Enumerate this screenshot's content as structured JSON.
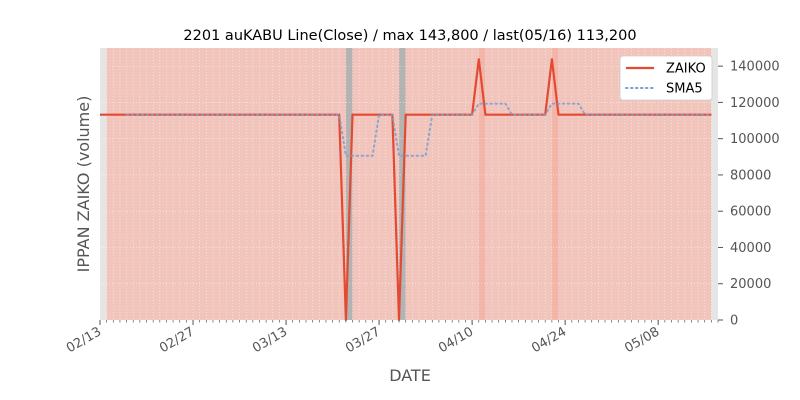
{
  "chart_data": {
    "type": "line",
    "title": "2201 auKABU Line(Close) / max 143,800 / last(05/16) 113,200",
    "xlabel": "DATE",
    "ylabel": "IPPAN ZAIKO (volume)",
    "ylim": [
      0,
      150000
    ],
    "yticks": [
      0,
      20000,
      40000,
      60000,
      80000,
      100000,
      120000,
      140000
    ],
    "ytick_labels": [
      "0",
      "20000",
      "40000",
      "60000",
      "80000",
      "100000",
      "120000",
      "140000"
    ],
    "xlim": [
      "2025-02-13",
      "2025-05-17"
    ],
    "xticks": [
      "2025-02-13",
      "2025-02-27",
      "2025-03-13",
      "2025-03-27",
      "2025-04-10",
      "2025-04-24",
      "2025-05-08"
    ],
    "xtick_labels": [
      "02/13",
      "02/27",
      "03/13",
      "03/27",
      "04/10",
      "04/24",
      "05/08"
    ],
    "grid": true,
    "legend_position": "top-right",
    "y_axis_side": "right",
    "background": "#e5e5e5",
    "series": [
      {
        "name": "ZAIKO",
        "color": "#e24a33",
        "style": "solid",
        "points": [
          [
            "2025-02-13",
            113200
          ],
          [
            "2025-03-21",
            113200
          ],
          [
            "2025-03-22",
            0
          ],
          [
            "2025-03-23",
            113200
          ],
          [
            "2025-03-29",
            113200
          ],
          [
            "2025-03-30",
            0
          ],
          [
            "2025-03-31",
            113200
          ],
          [
            "2025-04-10",
            113200
          ],
          [
            "2025-04-11",
            143800
          ],
          [
            "2025-04-12",
            113200
          ],
          [
            "2025-04-21",
            113200
          ],
          [
            "2025-04-22",
            143800
          ],
          [
            "2025-04-23",
            113200
          ],
          [
            "2025-05-16",
            113200
          ]
        ]
      },
      {
        "name": "SMA5",
        "color": "#7a9fcf",
        "style": "dotted",
        "points": [
          [
            "2025-02-17",
            113200
          ],
          [
            "2025-03-21",
            113200
          ],
          [
            "2025-03-22",
            90560
          ],
          [
            "2025-03-26",
            90560
          ],
          [
            "2025-03-27",
            113200
          ],
          [
            "2025-03-29",
            113200
          ],
          [
            "2025-03-30",
            90560
          ],
          [
            "2025-04-03",
            90560
          ],
          [
            "2025-04-04",
            113200
          ],
          [
            "2025-04-10",
            113200
          ],
          [
            "2025-04-11",
            119320
          ],
          [
            "2025-04-15",
            119320
          ],
          [
            "2025-04-16",
            113200
          ],
          [
            "2025-04-21",
            113200
          ],
          [
            "2025-04-22",
            119320
          ],
          [
            "2025-04-26",
            119320
          ],
          [
            "2025-04-27",
            113200
          ],
          [
            "2025-05-16",
            113200
          ]
        ]
      }
    ],
    "bands": [
      {
        "from": "2025-02-14",
        "to": "2025-05-16",
        "color": "#f2c5bc"
      },
      {
        "from": "2025-03-22",
        "to": "2025-03-23",
        "color": "#b3b3b3"
      },
      {
        "from": "2025-03-30",
        "to": "2025-03-31",
        "color": "#b3b3b3"
      },
      {
        "from": "2025-04-11",
        "to": "2025-04-12",
        "color": "#f2b5a8"
      },
      {
        "from": "2025-04-22",
        "to": "2025-04-23",
        "color": "#f2b5a8"
      }
    ]
  }
}
